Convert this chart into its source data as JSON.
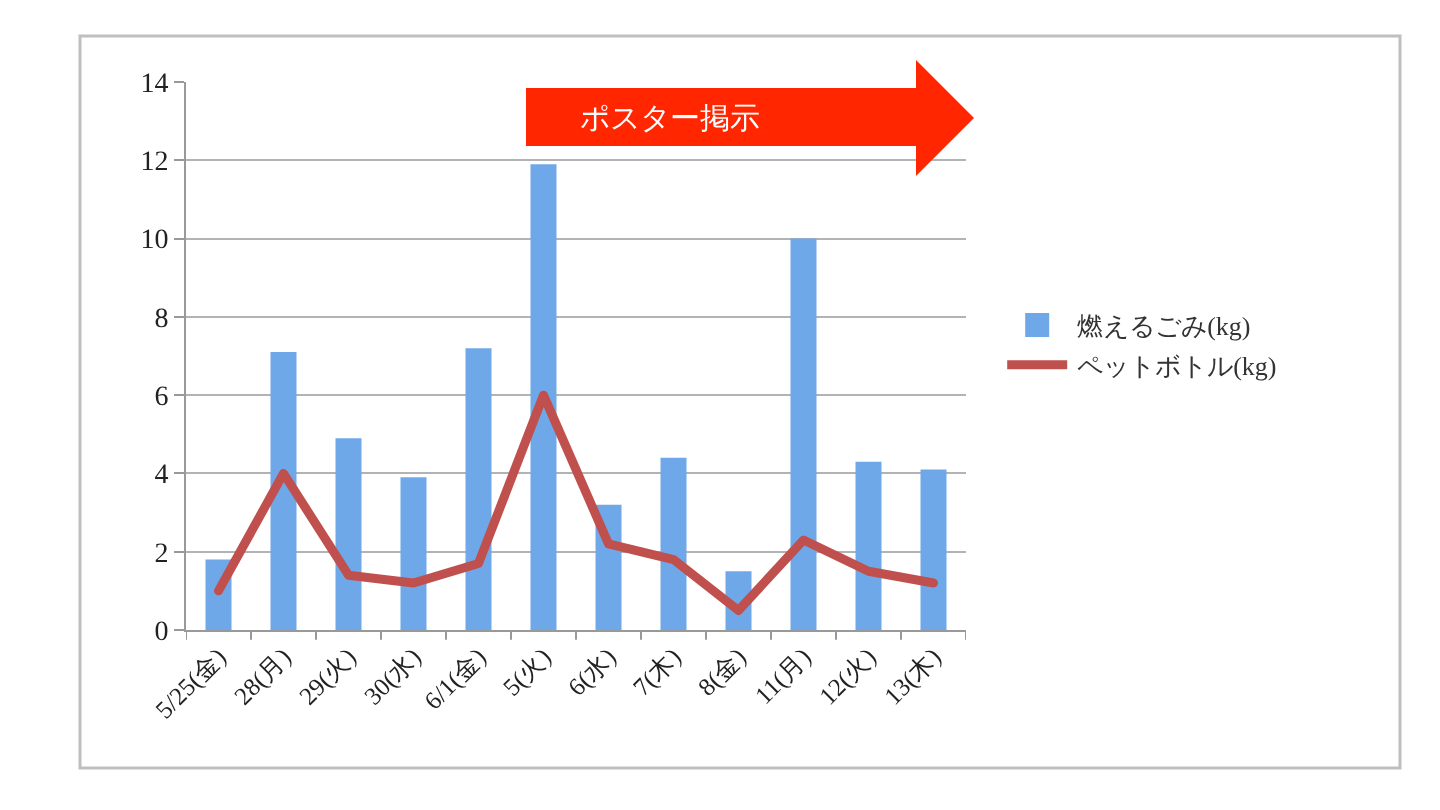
{
  "chart_data": {
    "type": "bar",
    "categories": [
      "5/25(金)",
      "28(月)",
      "29(火)",
      "30(水)",
      "6/1(金)",
      "5(火)",
      "6(水)",
      "7(木)",
      "8(金)",
      "11(月)",
      "12(火)",
      "13(木)"
    ],
    "series": [
      {
        "name": "燃えるごみ(kg)",
        "color": "#6fa8e8",
        "values": [
          1.8,
          7.1,
          4.9,
          3.9,
          7.2,
          11.9,
          3.2,
          4.4,
          1.5,
          10.0,
          4.3,
          4.1
        ]
      },
      {
        "name": "ペットボトル(kg)",
        "type": "line",
        "color": "#c0504d",
        "values": [
          1.0,
          4.0,
          1.4,
          1.2,
          1.7,
          6.0,
          2.2,
          1.8,
          0.5,
          2.3,
          1.5,
          1.2
        ]
      }
    ],
    "ylim": [
      0,
      14
    ],
    "yticks": [
      0,
      2,
      4,
      6,
      8,
      10,
      12,
      14
    ],
    "annotations": [
      "ポスター掲示"
    ],
    "grid": "y",
    "legend": "right",
    "marker": "none",
    "line_style": "solid"
  }
}
